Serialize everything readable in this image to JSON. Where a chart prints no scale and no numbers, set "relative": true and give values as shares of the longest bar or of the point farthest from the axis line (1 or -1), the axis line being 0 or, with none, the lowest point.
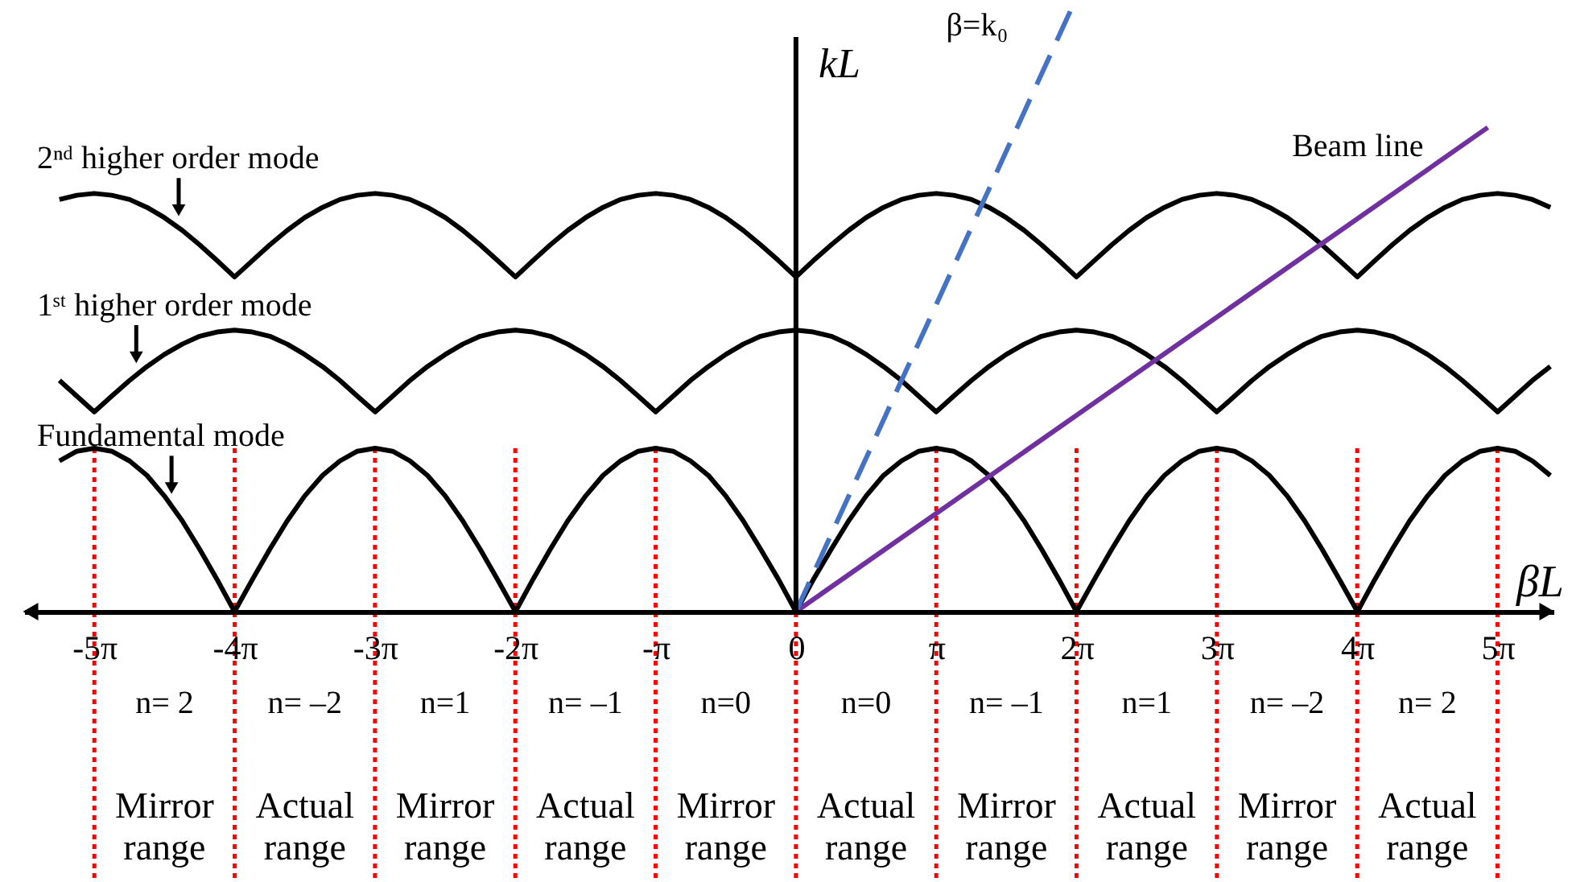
{
  "chart_data": {
    "type": "line",
    "relative": true,
    "xlabel": "βL",
    "ylabel": "kL",
    "grid": "x",
    "xlim": [
      -17.28,
      16.96
    ],
    "xticks": [
      {
        "value": -15.708,
        "label": "-5π"
      },
      {
        "value": -12.566,
        "label": "-4π"
      },
      {
        "value": -9.425,
        "label": "-3π"
      },
      {
        "value": -6.283,
        "label": "-2π"
      },
      {
        "value": -3.142,
        "label": "-π"
      },
      0,
      {
        "value": 3.142,
        "label": "π"
      },
      {
        "value": 6.283,
        "label": "2π"
      },
      {
        "value": 9.425,
        "label": "3π"
      },
      {
        "value": 12.566,
        "label": "4π"
      },
      {
        "value": 15.708,
        "label": "5π"
      }
    ],
    "x": [
      -16.49,
      -16.1,
      -15.71,
      -15.32,
      -14.92,
      -14.53,
      -14.14,
      -13.74,
      -13.35,
      -12.96,
      -12.57,
      -12.17,
      -11.78,
      -11.39,
      -11,
      -10.6,
      -10.21,
      -9.82,
      -9.42,
      -9.03,
      -8.64,
      -8.25,
      -7.85,
      -7.46,
      -7.07,
      -6.68,
      -6.28,
      -5.89,
      -5.5,
      -5.11,
      -4.71,
      -4.32,
      -3.93,
      -3.53,
      -3.14,
      -2.75,
      -2.36,
      -1.96,
      -1.57,
      -1.18,
      -0.79,
      -0.39,
      0,
      0.39,
      0.79,
      1.18,
      1.57,
      1.96,
      2.36,
      2.75,
      3.14,
      3.53,
      3.93,
      4.32,
      4.71,
      5.11,
      5.5,
      5.89,
      6.28,
      6.68,
      7.07,
      7.46,
      7.85,
      8.25,
      8.64,
      9.03,
      9.42,
      9.82,
      10.21,
      10.6,
      11,
      11.39,
      11.78,
      12.17,
      12.57,
      12.96,
      13.35,
      13.74,
      14.14,
      14.53,
      14.92,
      15.32,
      15.71,
      16.1,
      16.49,
      16.89
    ],
    "series": [
      {
        "color": "#000000",
        "values": [
          0.249,
          0.265,
          0.27,
          0.265,
          0.249,
          0.225,
          0.191,
          0.15,
          0.103,
          0.053,
          0,
          0.053,
          0.103,
          0.15,
          0.191,
          0.225,
          0.249,
          0.265,
          0.27,
          0.265,
          0.249,
          0.225,
          0.191,
          0.15,
          0.103,
          0.053,
          0,
          0.053,
          0.103,
          0.15,
          0.191,
          0.225,
          0.249,
          0.265,
          0.27,
          0.265,
          0.249,
          0.225,
          0.191,
          0.15,
          0.103,
          0.053,
          0,
          0.053,
          0.103,
          0.15,
          0.191,
          0.225,
          0.249,
          0.265,
          0.27,
          0.265,
          0.249,
          0.225,
          0.191,
          0.15,
          0.103,
          0.053,
          0,
          0.053,
          0.103,
          0.15,
          0.191,
          0.225,
          0.249,
          0.265,
          0.27,
          0.265,
          0.249,
          0.225,
          0.191,
          0.15,
          0.103,
          0.053,
          0,
          0.053,
          0.103,
          0.15,
          0.191,
          0.225,
          0.249,
          0.265,
          0.27,
          0.265,
          0.249,
          0.225
        ]
      },
      {
        "color": "#000000",
        "values": [
          0.382,
          0.356,
          0.33,
          0.356,
          0.382,
          0.405,
          0.425,
          0.442,
          0.455,
          0.462,
          0.465,
          0.462,
          0.455,
          0.442,
          0.425,
          0.405,
          0.382,
          0.356,
          0.33,
          0.356,
          0.382,
          0.405,
          0.425,
          0.442,
          0.455,
          0.462,
          0.465,
          0.462,
          0.455,
          0.442,
          0.425,
          0.405,
          0.382,
          0.356,
          0.33,
          0.356,
          0.382,
          0.405,
          0.425,
          0.442,
          0.455,
          0.462,
          0.465,
          0.462,
          0.455,
          0.442,
          0.425,
          0.405,
          0.382,
          0.356,
          0.33,
          0.356,
          0.382,
          0.405,
          0.425,
          0.442,
          0.455,
          0.462,
          0.465,
          0.462,
          0.455,
          0.442,
          0.425,
          0.405,
          0.382,
          0.356,
          0.33,
          0.356,
          0.382,
          0.405,
          0.425,
          0.442,
          0.455,
          0.462,
          0.465,
          0.462,
          0.455,
          0.442,
          0.425,
          0.405,
          0.382,
          0.356,
          0.33,
          0.356,
          0.382,
          0.405
        ]
      },
      {
        "color": "#000000",
        "values": [
          0.681,
          0.688,
          0.691,
          0.688,
          0.681,
          0.668,
          0.651,
          0.63,
          0.606,
          0.58,
          0.553,
          0.58,
          0.606,
          0.63,
          0.651,
          0.668,
          0.681,
          0.688,
          0.691,
          0.688,
          0.681,
          0.668,
          0.651,
          0.63,
          0.606,
          0.58,
          0.553,
          0.58,
          0.606,
          0.63,
          0.651,
          0.668,
          0.681,
          0.688,
          0.691,
          0.688,
          0.681,
          0.668,
          0.651,
          0.63,
          0.606,
          0.58,
          0.553,
          0.58,
          0.606,
          0.63,
          0.651,
          0.668,
          0.681,
          0.688,
          0.691,
          0.688,
          0.681,
          0.668,
          0.651,
          0.63,
          0.606,
          0.58,
          0.553,
          0.58,
          0.606,
          0.63,
          0.651,
          0.668,
          0.681,
          0.688,
          0.691,
          0.688,
          0.681,
          0.668,
          0.651,
          0.63,
          0.606,
          0.58,
          0.553,
          0.58,
          0.606,
          0.63,
          0.651,
          0.668,
          0.681,
          0.688,
          0.691,
          0.688,
          0.681,
          0.668
        ]
      },
      {
        "name": "β=k₀",
        "color": "#4472c4",
        "line_style": "dashed",
        "x": [
          0,
          6.19
        ],
        "values": [
          0,
          1
        ]
      },
      {
        "name": "Beam line",
        "color": "#7030a0",
        "x": [
          0,
          15.49
        ],
        "values": [
          0,
          0.8
        ]
      }
    ],
    "annotations": [
      {
        "text": "2ⁿᵈ higher order mode",
        "x": -13.82,
        "y": 0.634
      },
      {
        "text": "1ˢᵗ higher order mode",
        "x": -14.77,
        "y": 0.391
      },
      {
        "text": "Fundamental mode",
        "x": -13.98,
        "y": 0.175
      },
      "n= 2",
      "n= –2",
      "n=1",
      "n= –1",
      "n=0",
      "n=0",
      "n= –1",
      "n=1",
      "n= –2",
      "n= 2",
      "Mirror\nrange",
      "Actual\nrange",
      "Mirror\nrange",
      "Actual\nrange",
      "Mirror\nrange",
      "Actual\nrange",
      "Mirror\nrange",
      "Actual\nrange",
      "Mirror\nrange",
      "Actual\nrange"
    ]
  }
}
